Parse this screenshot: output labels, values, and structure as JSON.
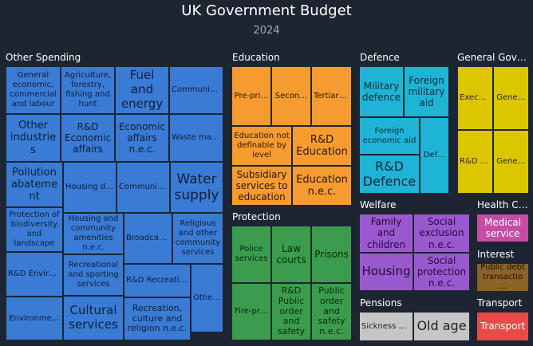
{
  "title": "UK Government Budget",
  "subtitle": "2024",
  "chart_data": {
    "type": "treemap",
    "title": "UK Government Budget",
    "subtitle": "2024",
    "groups": [
      {
        "name": "Other Spending",
        "color": "#3a7bd5",
        "text_color": "#0e1e38",
        "items": [
          {
            "label": "General economic, commercial and labour"
          },
          {
            "label": "Agriculture, forestry, fishing and hunt"
          },
          {
            "label": "Fuel and energy"
          },
          {
            "label": "Communic…"
          },
          {
            "label": "Other industries"
          },
          {
            "label": "R&D Economic affairs"
          },
          {
            "label": "Economic affairs n.e.c."
          },
          {
            "label": "Waste managem…"
          },
          {
            "label": "Pollution abatement"
          },
          {
            "label": "Housing developm…"
          },
          {
            "label": "Community developm…"
          },
          {
            "label": "Water supply"
          },
          {
            "label": "Protection of biodiversity and landscape"
          },
          {
            "label": "Housing and community amenities n.e.c."
          },
          {
            "label": "Broadcas…"
          },
          {
            "label": "Religious and other community services"
          },
          {
            "label": "R&D Environme…"
          },
          {
            "label": "Recreational and sporting services"
          },
          {
            "label": "R&D Recreation, culture and…"
          },
          {
            "label": "Other Spen…"
          },
          {
            "label": "Environme…"
          },
          {
            "label": "Cultural services"
          },
          {
            "label": "Recreation, culture and religion n.e.c."
          }
        ]
      },
      {
        "name": "Education",
        "color": "#f59b2f",
        "text_color": "#2a1600",
        "items": [
          {
            "label": "Pre-pri…"
          },
          {
            "label": "Secon…"
          },
          {
            "label": "Tertiary educat…"
          },
          {
            "label": "Education not definable by level"
          },
          {
            "label": "R&D Education"
          },
          {
            "label": "Subsidiary services to education"
          },
          {
            "label": "Education n.e.c."
          }
        ]
      },
      {
        "name": "Defence",
        "color": "#1fb4d6",
        "text_color": "#062a36",
        "items": [
          {
            "label": "Military defence"
          },
          {
            "label": "Foreign military aid"
          },
          {
            "label": "Foreign economic aid"
          },
          {
            "label": "Def…"
          },
          {
            "label": "R&D Defence"
          }
        ]
      },
      {
        "name": "General Gov…",
        "color": "#dcc600",
        "text_color": "#2c2600",
        "items": [
          {
            "label": "Execu…"
          },
          {
            "label": "Gene…"
          },
          {
            "label": "R&D Gene…"
          },
          {
            "label": "Gene…"
          }
        ]
      },
      {
        "name": "Protection",
        "color": "#3a9c4c",
        "text_color": "#0b2710",
        "items": [
          {
            "label": "Police services"
          },
          {
            "label": "Law courts"
          },
          {
            "label": "Prisons"
          },
          {
            "label": "Fire-pr…"
          },
          {
            "label": "R&D Public order and safety"
          },
          {
            "label": "Public order and safety n.e.c."
          }
        ]
      },
      {
        "name": "Welfare",
        "color": "#9b59d0",
        "text_color": "#220b36",
        "items": [
          {
            "label": "Family and children"
          },
          {
            "label": "Social exclusion n.e.c."
          },
          {
            "label": "Housing"
          },
          {
            "label": "Social protection n.e.c."
          }
        ]
      },
      {
        "name": "Health C…",
        "color": "#c84ca4",
        "text_color": "#ffffff",
        "items": [
          {
            "label": "Medical service"
          }
        ]
      },
      {
        "name": "Interest",
        "color": "#8a6326",
        "text_color": "#1c1204",
        "items": [
          {
            "label": "Public debt transactio…"
          }
        ]
      },
      {
        "name": "Pensions",
        "color": "#c6c6c6",
        "text_color": "#1f1f1f",
        "items": [
          {
            "label": "Sickness and…"
          },
          {
            "label": "Old age"
          }
        ]
      },
      {
        "name": "Transport",
        "color": "#e84a4a",
        "text_color": "#ffffff",
        "items": [
          {
            "label": "Transport"
          }
        ]
      }
    ]
  }
}
